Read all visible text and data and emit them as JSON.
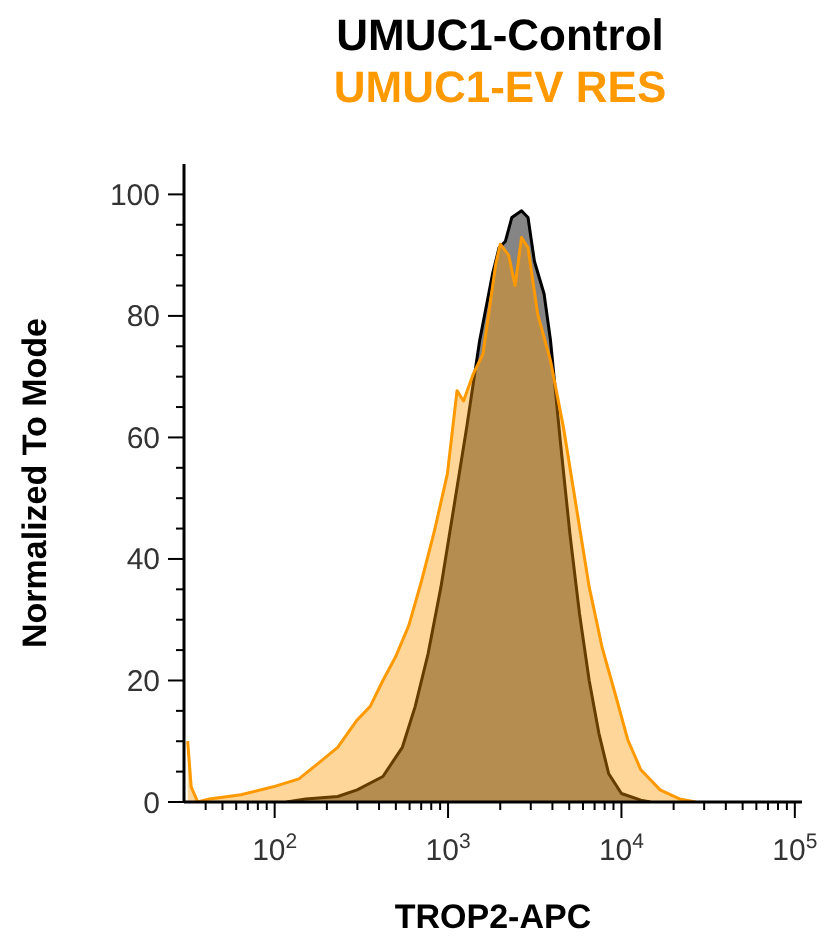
{
  "chart_data": {
    "type": "area",
    "xlabel": "TROP2-APC",
    "ylabel": "Normalized To Mode",
    "log": "x",
    "legend": "top",
    "xlim": [
      30,
      110000
    ],
    "ylim": [
      0,
      105
    ],
    "xticks": [
      {
        "value": 40,
        "label": null
      },
      {
        "value": 50,
        "label": null
      },
      {
        "value": 60,
        "label": null
      },
      {
        "value": 70,
        "label": null
      },
      {
        "value": 80,
        "label": null
      },
      {
        "value": 90,
        "label": null
      },
      {
        "value": 100,
        "label": "10$^{2}$"
      },
      {
        "value": 200,
        "label": null
      },
      {
        "value": 300,
        "label": null
      },
      {
        "value": 400,
        "label": null
      },
      {
        "value": 500,
        "label": null
      },
      {
        "value": 600,
        "label": null
      },
      {
        "value": 700,
        "label": null
      },
      {
        "value": 800,
        "label": null
      },
      {
        "value": 900,
        "label": null
      },
      {
        "value": 1000,
        "label": "10$^{3}$"
      },
      {
        "value": 2000,
        "label": null
      },
      {
        "value": 3000,
        "label": null
      },
      {
        "value": 4000,
        "label": null
      },
      {
        "value": 5000,
        "label": null
      },
      {
        "value": 6000,
        "label": null
      },
      {
        "value": 7000,
        "label": null
      },
      {
        "value": 8000,
        "label": null
      },
      {
        "value": 9000,
        "label": null
      },
      {
        "value": 10000,
        "label": "10$^{4}$"
      },
      {
        "value": 20000,
        "label": null
      },
      {
        "value": 30000,
        "label": null
      },
      {
        "value": 40000,
        "label": null
      },
      {
        "value": 50000,
        "label": null
      },
      {
        "value": 60000,
        "label": null
      },
      {
        "value": 70000,
        "label": null
      },
      {
        "value": 80000,
        "label": null
      },
      {
        "value": 90000,
        "label": null
      },
      {
        "value": 100000,
        "label": "10$^{5}$"
      }
    ],
    "yticks": [
      0,
      {
        "value": 5,
        "label": null
      },
      {
        "value": 10,
        "label": null
      },
      {
        "value": 15,
        "label": null
      },
      20,
      {
        "value": 25,
        "label": null
      },
      {
        "value": 30,
        "label": null
      },
      {
        "value": 35,
        "label": null
      },
      40,
      {
        "value": 45,
        "label": null
      },
      {
        "value": 50,
        "label": null
      },
      {
        "value": 55,
        "label": null
      },
      60,
      {
        "value": 65,
        "label": null
      },
      {
        "value": 70,
        "label": null
      },
      {
        "value": 75,
        "label": null
      },
      80,
      {
        "value": 85,
        "label": null
      },
      {
        "value": 90,
        "label": null
      },
      {
        "value": 95,
        "label": null
      },
      100
    ],
    "series": [
      {
        "name": "UMUC1-Control",
        "color": "#000000",
        "x": [
          117,
          151,
          231,
          299,
          421,
          545,
          646,
          767,
          910,
          1080,
          1282,
          1521,
          1805,
          1968,
          2143,
          2333,
          2654,
          2892,
          3148,
          3581,
          3901,
          4436,
          5047,
          5730,
          6516,
          7413,
          8433,
          10000,
          12940,
          14690
        ],
        "values": [
          0,
          0.5,
          0.9,
          2,
          4.2,
          9,
          15.7,
          24.4,
          35.4,
          48.5,
          61.7,
          75.9,
          86.9,
          91.2,
          92.3,
          96.2,
          97.3,
          96.2,
          89,
          83.6,
          75.9,
          59.5,
          44.1,
          31,
          20,
          11.3,
          4.7,
          1.4,
          0.3,
          0
        ]
      },
      {
        "name": "UMUC1-EV RES",
        "color": "#ff9900",
        "x": [
          31.5,
          33,
          36,
          42,
          64,
          98,
          138,
          179,
          231,
          299,
          355,
          421,
          500,
          593,
          705,
          836,
          991,
          1127,
          1228,
          1396,
          1588,
          1884,
          2000,
          2235,
          2436,
          2654,
          2892,
          3288,
          3901,
          4627,
          5495,
          6516,
          7727,
          9182,
          10890,
          12940,
          16710,
          21630,
          26790
        ],
        "values": [
          10,
          2.5,
          0,
          0.5,
          1.2,
          2.5,
          3.8,
          6.4,
          9,
          13.5,
          15.7,
          20,
          24,
          29,
          36.5,
          44.7,
          54,
          67.7,
          66,
          70.4,
          73.7,
          88.5,
          91.8,
          90,
          85,
          92.9,
          91.2,
          80.3,
          72.6,
          61.7,
          48.5,
          35.4,
          25.5,
          17.9,
          10.2,
          5.3,
          2,
          0.5,
          0
        ]
      }
    ]
  }
}
